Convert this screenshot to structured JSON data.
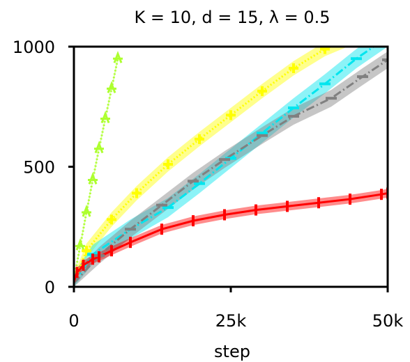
{
  "chart_data": {
    "type": "line",
    "title": "K = 10, d = 15, λ = 0.5",
    "xlabel": "step",
    "ylabel": "",
    "xlim": [
      0,
      50000
    ],
    "ylim": [
      0,
      1000
    ],
    "x_ticks": [
      0,
      25000,
      50000
    ],
    "x_tick_labels": [
      "0",
      "25k",
      "50k"
    ],
    "y_ticks": [
      0,
      500,
      1000
    ],
    "y_tick_labels": [
      "0",
      "500",
      "1000"
    ],
    "grid": false,
    "legend": "none",
    "series": [
      {
        "color": "#adff2f",
        "line_style": "dotted",
        "marker": "star",
        "x": [
          0,
          1000,
          2000,
          3000,
          4000,
          5000,
          6000,
          7000
        ],
        "y": [
          30,
          170,
          310,
          445,
          575,
          700,
          825,
          950
        ],
        "band": 12
      },
      {
        "color": "#ffff00",
        "line_style": "dotted",
        "marker": "plus",
        "x": [
          0,
          2000,
          6000,
          10000,
          15000,
          20000,
          25000,
          30000,
          35000,
          40000,
          45000,
          50000
        ],
        "y": [
          20,
          150,
          280,
          390,
          510,
          615,
          715,
          815,
          910,
          990,
          1045,
          1100
        ],
        "band": 30
      },
      {
        "color": "#00e5ee",
        "line_style": "dashdot",
        "marker": "hline",
        "x": [
          0,
          3000,
          9000,
          15000,
          20000,
          25000,
          30000,
          35000,
          40000,
          45000,
          50000
        ],
        "y": [
          15,
          135,
          240,
          330,
          430,
          535,
          640,
          745,
          845,
          950,
          1040
        ],
        "band": 40
      },
      {
        "color": "#808080",
        "line_style": "dashdot",
        "marker": "hline",
        "x": [
          0,
          4000,
          9000,
          14000,
          19000,
          24000,
          30000,
          35000,
          41000,
          46000,
          50000
        ],
        "y": [
          15,
          130,
          240,
          340,
          440,
          530,
          630,
          710,
          785,
          875,
          945
        ],
        "band": 35
      },
      {
        "color": "#ff0000",
        "line_style": "solid",
        "marker": "vline",
        "x": [
          0,
          500,
          1500,
          3000,
          4000,
          6000,
          9000,
          14000,
          19000,
          24000,
          29000,
          34000,
          39000,
          44000,
          49000,
          50000
        ],
        "y": [
          20,
          60,
          90,
          115,
          125,
          150,
          185,
          240,
          275,
          300,
          320,
          335,
          350,
          365,
          385,
          390
        ],
        "band": 18
      }
    ]
  }
}
